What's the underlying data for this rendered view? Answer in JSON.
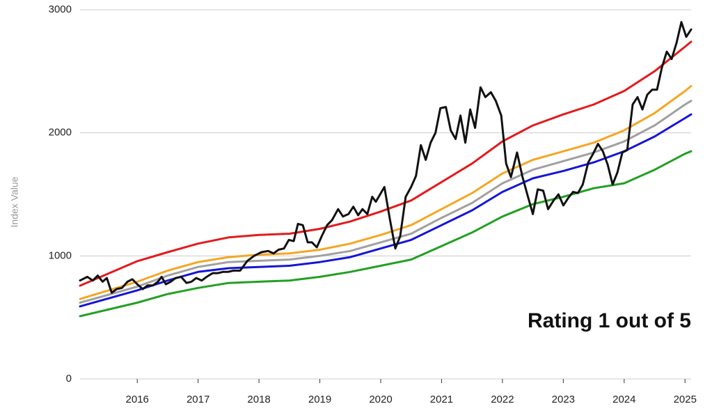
{
  "chart_data": {
    "type": "line",
    "y_label": "Index Value",
    "annotation": "Rating 1 out of 5",
    "xlim": [
      2015.06,
      2025.1
    ],
    "xticks": [
      2016,
      2017,
      2018,
      2019,
      2020,
      2021,
      2022,
      2023,
      2024,
      2025
    ],
    "ylim": [
      0,
      3000
    ],
    "yticks": [
      0,
      1000,
      2000,
      3000
    ],
    "grid": true,
    "series": [
      {
        "color": "#e31a1c",
        "x": [
          2015.06,
          2016,
          2016.5,
          2017,
          2017.5,
          2018,
          2018.5,
          2019,
          2019.5,
          2020,
          2020.5,
          2021,
          2021.5,
          2022,
          2022.5,
          2023,
          2023.5,
          2024,
          2024.5,
          2025,
          2025.1
        ],
        "values": [
          758,
          957,
          1030,
          1100,
          1150,
          1170,
          1180,
          1220,
          1280,
          1360,
          1450,
          1600,
          1750,
          1930,
          2060,
          2150,
          2230,
          2340,
          2500,
          2700,
          2740
        ]
      },
      {
        "color": "#f5a623",
        "x": [
          2015.06,
          2016,
          2016.5,
          2017,
          2017.5,
          2018,
          2018.5,
          2019,
          2019.5,
          2020,
          2020.5,
          2021,
          2021.5,
          2022,
          2022.5,
          2023,
          2023.5,
          2024,
          2024.5,
          2025,
          2025.1
        ],
        "values": [
          650,
          790,
          880,
          950,
          990,
          1010,
          1020,
          1050,
          1100,
          1170,
          1250,
          1380,
          1510,
          1670,
          1780,
          1850,
          1920,
          2020,
          2160,
          2340,
          2380
        ]
      },
      {
        "color": "#a0a0a0",
        "x": [
          2015.06,
          2016,
          2016.5,
          2017,
          2017.5,
          2018,
          2018.5,
          2019,
          2019.5,
          2020,
          2020.5,
          2021,
          2021.5,
          2022,
          2022.5,
          2023,
          2023.5,
          2024,
          2024.5,
          2025,
          2025.1
        ],
        "values": [
          620,
          750,
          840,
          910,
          950,
          960,
          970,
          1000,
          1040,
          1110,
          1180,
          1310,
          1430,
          1590,
          1700,
          1770,
          1840,
          1930,
          2060,
          2230,
          2260
        ]
      },
      {
        "color": "#1515d8",
        "x": [
          2015.06,
          2016,
          2016.5,
          2017,
          2017.5,
          2018,
          2018.5,
          2019,
          2019.5,
          2020,
          2020.5,
          2021,
          2021.5,
          2022,
          2022.5,
          2023,
          2023.5,
          2024,
          2024.5,
          2025,
          2025.1
        ],
        "values": [
          590,
          720,
          800,
          870,
          900,
          910,
          920,
          950,
          990,
          1060,
          1130,
          1250,
          1370,
          1520,
          1630,
          1690,
          1760,
          1850,
          1970,
          2120,
          2150
        ]
      },
      {
        "color": "#22a022",
        "x": [
          2015.06,
          2016,
          2016.5,
          2017,
          2017.5,
          2018,
          2018.5,
          2019,
          2019.5,
          2020,
          2020.5,
          2021,
          2021.5,
          2022,
          2022.5,
          2023,
          2023.5,
          2024,
          2024.5,
          2025,
          2025.1
        ],
        "values": [
          510,
          620,
          690,
          740,
          780,
          790,
          800,
          830,
          870,
          920,
          970,
          1080,
          1190,
          1320,
          1420,
          1480,
          1550,
          1590,
          1700,
          1830,
          1850
        ]
      },
      {
        "color": "#111111",
        "x": [
          2015.06,
          2015.18,
          2015.27,
          2015.35,
          2015.43,
          2015.5,
          2015.58,
          2015.66,
          2015.75,
          2015.84,
          2015.92,
          2016.0,
          2016.09,
          2016.17,
          2016.26,
          2016.34,
          2016.4,
          2016.47,
          2016.55,
          2016.63,
          2016.72,
          2016.81,
          2016.89,
          2016.97,
          2017.06,
          2017.14,
          2017.24,
          2017.32,
          2017.41,
          2017.49,
          2017.58,
          2017.69,
          2017.81,
          2017.92,
          2018.04,
          2018.15,
          2018.24,
          2018.32,
          2018.41,
          2018.49,
          2018.57,
          2018.64,
          2018.72,
          2018.8,
          2018.87,
          2018.95,
          2019.03,
          2019.12,
          2019.2,
          2019.3,
          2019.38,
          2019.47,
          2019.55,
          2019.63,
          2019.7,
          2019.78,
          2019.86,
          2019.92,
          2020.06,
          2020.15,
          2020.24,
          2020.32,
          2020.41,
          2020.5,
          2020.58,
          2020.66,
          2020.74,
          2020.82,
          2020.9,
          2020.98,
          2021.07,
          2021.15,
          2021.23,
          2021.31,
          2021.39,
          2021.47,
          2021.55,
          2021.64,
          2021.72,
          2021.81,
          2021.89,
          2021.98,
          2022.06,
          2022.14,
          2022.24,
          2022.33,
          2022.42,
          2022.5,
          2022.58,
          2022.67,
          2022.75,
          2022.84,
          2022.92,
          2023.0,
          2023.08,
          2023.16,
          2023.24,
          2023.32,
          2023.41,
          2023.49,
          2023.57,
          2023.65,
          2023.73,
          2023.81,
          2023.89,
          2023.97,
          2024.05,
          2024.14,
          2024.22,
          2024.3,
          2024.38,
          2024.46,
          2024.54,
          2024.62,
          2024.7,
          2024.78,
          2024.86,
          2024.94,
          2025.02,
          2025.1
        ],
        "values": [
          800,
          830,
          800,
          840,
          790,
          820,
          700,
          730,
          740,
          790,
          810,
          770,
          730,
          760,
          760,
          790,
          830,
          770,
          790,
          820,
          830,
          780,
          790,
          820,
          800,
          830,
          860,
          860,
          870,
          870,
          880,
          880,
          960,
          1000,
          1030,
          1040,
          1020,
          1050,
          1060,
          1130,
          1120,
          1260,
          1250,
          1110,
          1110,
          1070,
          1160,
          1250,
          1290,
          1380,
          1320,
          1340,
          1400,
          1330,
          1380,
          1340,
          1480,
          1440,
          1560,
          1300,
          1060,
          1160,
          1480,
          1560,
          1650,
          1900,
          1780,
          1920,
          2000,
          2200,
          2210,
          2020,
          1950,
          2140,
          1920,
          2190,
          2040,
          2370,
          2290,
          2330,
          2260,
          2140,
          1750,
          1640,
          1840,
          1640,
          1480,
          1340,
          1540,
          1530,
          1380,
          1450,
          1500,
          1410,
          1470,
          1520,
          1510,
          1580,
          1760,
          1830,
          1910,
          1850,
          1740,
          1580,
          1680,
          1840,
          1860,
          2230,
          2290,
          2190,
          2310,
          2350,
          2350,
          2530,
          2660,
          2600,
          2730,
          2900,
          2780,
          2840
        ]
      }
    ]
  }
}
